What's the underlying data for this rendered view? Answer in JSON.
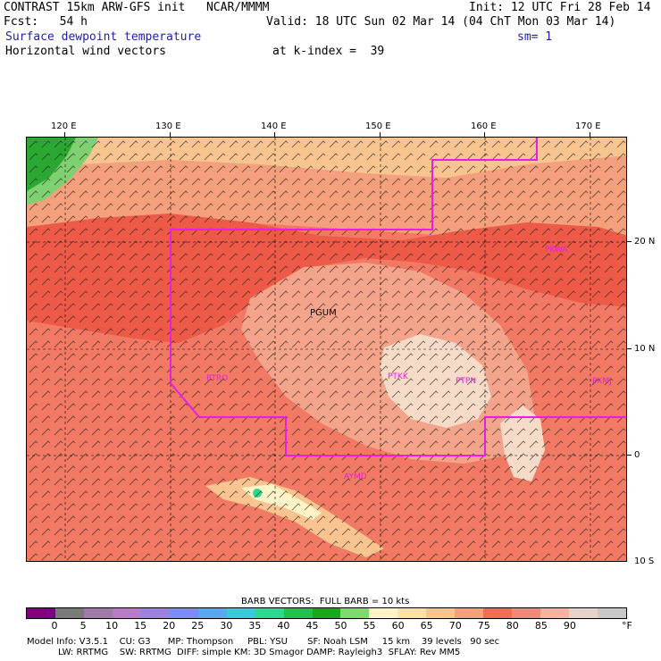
{
  "header": {
    "model_title": "CONTRAST 15km ARW-GFS init   NCAR/MMMM",
    "init": "Init: 12 UTC Fri 28 Feb 14",
    "fcst": "Fcst:   54 h",
    "valid": "Valid: 18 UTC Sun 02 Mar 14 (04 ChT Mon 03 Mar 14)",
    "field1": "Surface dewpoint temperature",
    "smoothing": "sm= 1",
    "field2": "Horizontal wind vectors",
    "level": "at k-index =  39"
  },
  "axes": {
    "lon_labels": [
      "120 E",
      "130 E",
      "140 E",
      "150 E",
      "160 E",
      "170 E"
    ],
    "lat_labels": [
      "20 N",
      "10 N",
      "0",
      "10 S"
    ]
  },
  "stations": [
    {
      "code": "PKWA"
    },
    {
      "code": "PTRO"
    },
    {
      "code": "PTKK"
    },
    {
      "code": "PTPN"
    },
    {
      "code": "PKMJ"
    },
    {
      "code": "PGUM"
    },
    {
      "code": "AYMD"
    }
  ],
  "legend": {
    "barb_note": "BARB VECTORS:  FULL BARB = 10 kts",
    "unit": "°F",
    "ticks": [
      "0",
      "5",
      "10",
      "15",
      "20",
      "25",
      "30",
      "35",
      "40",
      "45",
      "50",
      "55",
      "60",
      "65",
      "70",
      "75",
      "80",
      "85",
      "90"
    ],
    "colors": [
      "#800080",
      "#7a7a7a",
      "#a07aa8",
      "#b87cc6",
      "#9b82e0",
      "#7b8cf4",
      "#5aa8f0",
      "#3cc8d8",
      "#2ad890",
      "#22c050",
      "#1aa81a",
      "#80d870",
      "#fff4c8",
      "#fde0a8",
      "#f8c490",
      "#f4a07c",
      "#f06e58",
      "#f08a78",
      "#f4b4a0",
      "#e6d4c8",
      "#c8c8c8"
    ]
  },
  "footer": {
    "line1": "Model Info: V3.5.1    CU: G3      MP: Thompson     PBL: YSU       SF: Noah LSM     15 km    39 levels   90 sec",
    "line2": "           LW: RRTMG    SW: RRTMG  DIFF: simple KM: 3D Smagor DAMP: Rayleigh3  SFLAY: Rev MM5"
  }
}
